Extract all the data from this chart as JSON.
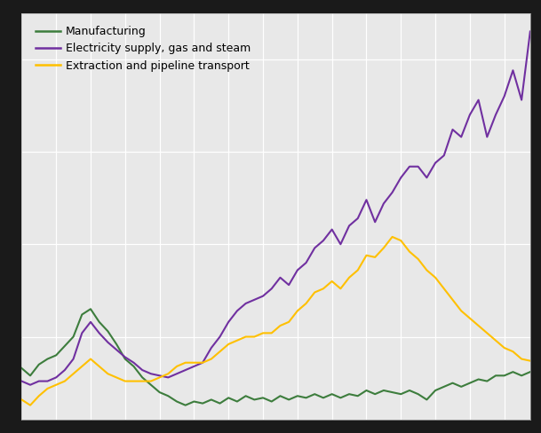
{
  "legend_entries": [
    "Manufacturing",
    "Electricity supply, gas and steam",
    "Extraction and pipeline transport"
  ],
  "colors": [
    "#3d7d3d",
    "#7030a0",
    "#ffc000"
  ],
  "line_width": 1.5,
  "fig_bg": "#1a1a1a",
  "plot_bg": "#e8e8e8",
  "grid_color": "#ffffff",
  "n_quarters": 60,
  "manufacturing": [
    83,
    79,
    85,
    88,
    90,
    95,
    100,
    112,
    115,
    108,
    103,
    96,
    88,
    84,
    78,
    74,
    70,
    68,
    65,
    63,
    65,
    64,
    66,
    64,
    67,
    65,
    68,
    66,
    67,
    65,
    68,
    66,
    68,
    67,
    69,
    67,
    69,
    67,
    69,
    68,
    71,
    69,
    71,
    70,
    69,
    71,
    69,
    66,
    71,
    73,
    75,
    73,
    75,
    77,
    76,
    79,
    79,
    81,
    79,
    81
  ],
  "electricity": [
    76,
    74,
    76,
    76,
    78,
    82,
    88,
    102,
    108,
    102,
    97,
    93,
    89,
    86,
    82,
    80,
    79,
    78,
    80,
    82,
    84,
    86,
    94,
    100,
    108,
    114,
    118,
    120,
    122,
    126,
    132,
    128,
    136,
    140,
    148,
    152,
    158,
    150,
    160,
    164,
    174,
    162,
    172,
    178,
    186,
    192,
    192,
    186,
    194,
    198,
    212,
    208,
    220,
    228,
    208,
    220,
    230,
    244,
    228,
    265
  ],
  "extraction": [
    66,
    63,
    68,
    72,
    74,
    76,
    80,
    84,
    88,
    84,
    80,
    78,
    76,
    76,
    76,
    76,
    78,
    80,
    84,
    86,
    86,
    86,
    88,
    92,
    96,
    98,
    100,
    100,
    102,
    102,
    106,
    108,
    114,
    118,
    124,
    126,
    130,
    126,
    132,
    136,
    144,
    143,
    148,
    154,
    152,
    146,
    142,
    136,
    132,
    126,
    120,
    114,
    110,
    106,
    102,
    98,
    94,
    92,
    88,
    87
  ],
  "ylim": [
    55,
    275
  ],
  "xlim": [
    0,
    59
  ],
  "ytick_interval": 50,
  "xtick_interval": 4
}
